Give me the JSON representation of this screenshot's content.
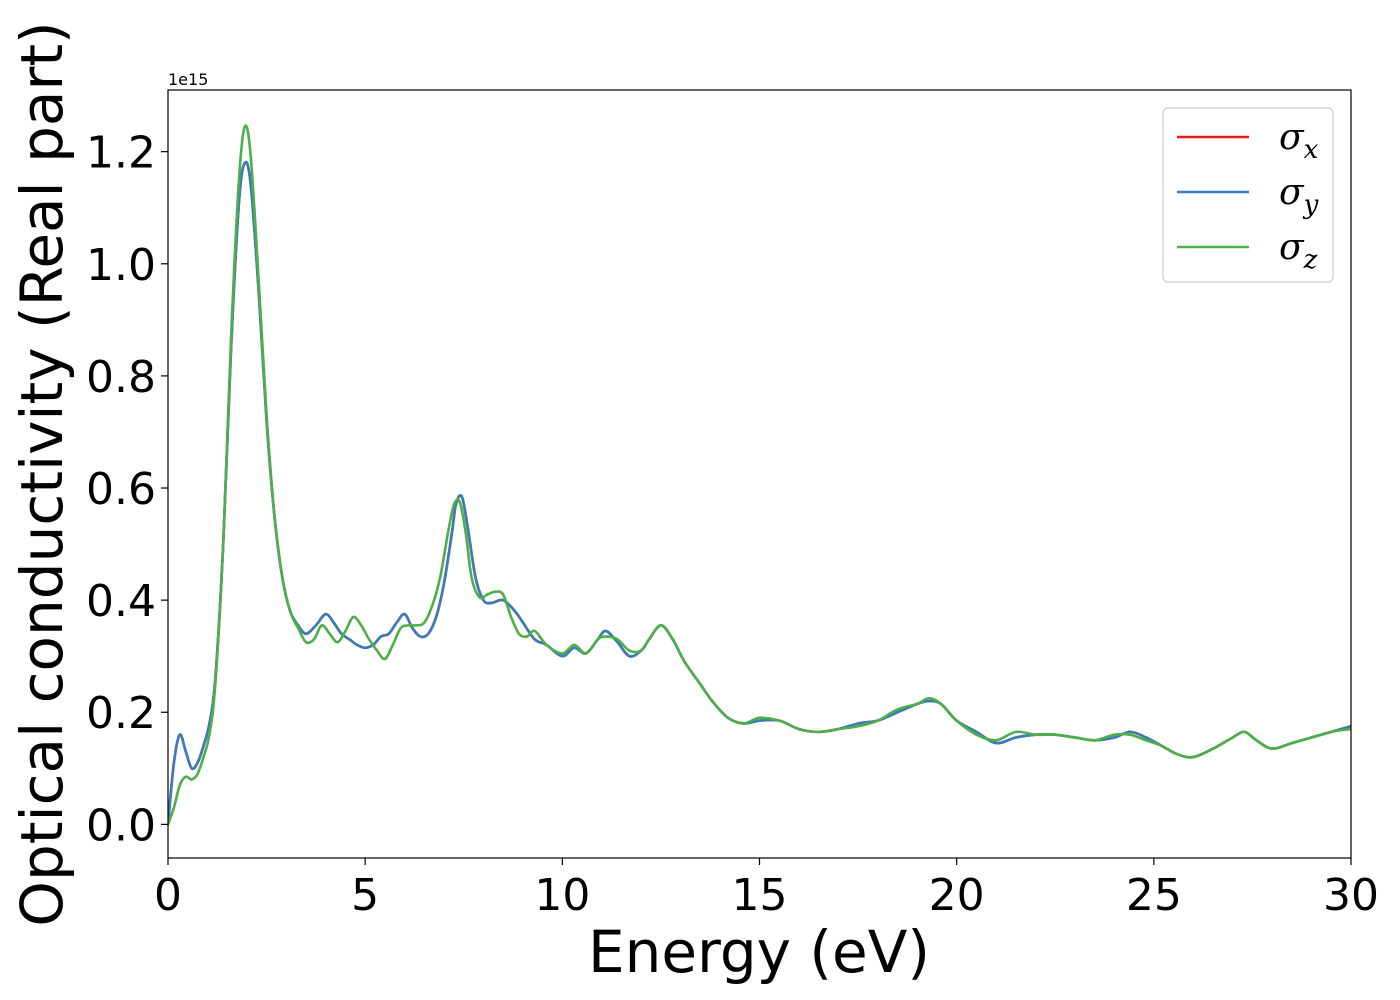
{
  "chart_data": {
    "type": "line",
    "title": "",
    "xlabel": "Energy (eV)",
    "ylabel": "Optical conductivity (Real part)",
    "y_offset_label": "1e15",
    "xlim": [
      0,
      30
    ],
    "ylim": [
      -0.06,
      1.31
    ],
    "x_ticks": [
      0,
      5,
      10,
      15,
      20,
      25,
      30
    ],
    "x_tick_labels": [
      "0",
      "5",
      "10",
      "15",
      "20",
      "25",
      "30"
    ],
    "y_ticks": [
      0.0,
      0.2,
      0.4,
      0.6,
      0.8,
      1.0,
      1.2
    ],
    "y_tick_labels": [
      "0.0",
      "0.2",
      "0.4",
      "0.6",
      "0.8",
      "1.0",
      "1.2"
    ],
    "grid": false,
    "legend_position": "top-right",
    "series": [
      {
        "name": "σx",
        "symbol": "σ",
        "subscript": "x",
        "color": "#e41a1c",
        "x": [
          0,
          0.15,
          0.3,
          0.45,
          0.6,
          0.75,
          0.9,
          1.05,
          1.2,
          1.4,
          1.6,
          1.8,
          1.95,
          2.1,
          2.3,
          2.5,
          2.7,
          2.9,
          3.1,
          3.3,
          3.5,
          3.75,
          4.0,
          4.2,
          4.4,
          4.6,
          4.8,
          5.0,
          5.2,
          5.4,
          5.6,
          5.8,
          6.0,
          6.2,
          6.4,
          6.6,
          6.8,
          7.0,
          7.2,
          7.3,
          7.45,
          7.6,
          7.8,
          8.0,
          8.2,
          8.5,
          8.8,
          9.0,
          9.3,
          9.6,
          10.0,
          10.3,
          10.6,
          10.9,
          11.1,
          11.4,
          11.7,
          12.0,
          12.2,
          12.5,
          12.8,
          13.1,
          13.5,
          13.8,
          14.2,
          14.6,
          15.0,
          15.5,
          16.0,
          16.5,
          17.0,
          17.5,
          18.0,
          18.5,
          19.0,
          19.3,
          19.6,
          20.0,
          20.5,
          21.0,
          21.5,
          22.0,
          22.5,
          23.0,
          23.5,
          24.0,
          24.4,
          24.8,
          25.2,
          25.6,
          26.0,
          26.5,
          27.0,
          27.3,
          27.6,
          28.0,
          28.5,
          29.0,
          29.5,
          30.0
        ],
        "values": [
          0.0,
          0.11,
          0.16,
          0.13,
          0.1,
          0.11,
          0.14,
          0.18,
          0.26,
          0.5,
          0.85,
          1.11,
          1.18,
          1.14,
          0.95,
          0.72,
          0.55,
          0.44,
          0.38,
          0.355,
          0.34,
          0.355,
          0.375,
          0.36,
          0.34,
          0.33,
          0.32,
          0.315,
          0.32,
          0.335,
          0.34,
          0.36,
          0.375,
          0.35,
          0.335,
          0.34,
          0.37,
          0.43,
          0.52,
          0.57,
          0.585,
          0.53,
          0.44,
          0.4,
          0.395,
          0.4,
          0.38,
          0.36,
          0.33,
          0.32,
          0.3,
          0.315,
          0.305,
          0.33,
          0.345,
          0.325,
          0.3,
          0.31,
          0.33,
          0.355,
          0.33,
          0.29,
          0.25,
          0.22,
          0.19,
          0.18,
          0.185,
          0.185,
          0.17,
          0.165,
          0.17,
          0.18,
          0.185,
          0.2,
          0.215,
          0.22,
          0.215,
          0.185,
          0.165,
          0.145,
          0.155,
          0.16,
          0.16,
          0.155,
          0.15,
          0.155,
          0.165,
          0.155,
          0.14,
          0.125,
          0.12,
          0.135,
          0.155,
          0.165,
          0.15,
          0.135,
          0.145,
          0.155,
          0.165,
          0.175
        ]
      },
      {
        "name": "σy",
        "symbol": "σ",
        "subscript": "y",
        "color": "#377eb8",
        "x": [
          0,
          0.15,
          0.3,
          0.45,
          0.6,
          0.75,
          0.9,
          1.05,
          1.2,
          1.4,
          1.6,
          1.8,
          1.95,
          2.1,
          2.3,
          2.5,
          2.7,
          2.9,
          3.1,
          3.3,
          3.5,
          3.75,
          4.0,
          4.2,
          4.4,
          4.6,
          4.8,
          5.0,
          5.2,
          5.4,
          5.6,
          5.8,
          6.0,
          6.2,
          6.4,
          6.6,
          6.8,
          7.0,
          7.2,
          7.3,
          7.45,
          7.6,
          7.8,
          8.0,
          8.2,
          8.5,
          8.8,
          9.0,
          9.3,
          9.6,
          10.0,
          10.3,
          10.6,
          10.9,
          11.1,
          11.4,
          11.7,
          12.0,
          12.2,
          12.5,
          12.8,
          13.1,
          13.5,
          13.8,
          14.2,
          14.6,
          15.0,
          15.5,
          16.0,
          16.5,
          17.0,
          17.5,
          18.0,
          18.5,
          19.0,
          19.3,
          19.6,
          20.0,
          20.5,
          21.0,
          21.5,
          22.0,
          22.5,
          23.0,
          23.5,
          24.0,
          24.4,
          24.8,
          25.2,
          25.6,
          26.0,
          26.5,
          27.0,
          27.3,
          27.6,
          28.0,
          28.5,
          29.0,
          29.5,
          30.0
        ],
        "values": [
          0.0,
          0.11,
          0.16,
          0.13,
          0.1,
          0.11,
          0.14,
          0.18,
          0.26,
          0.5,
          0.85,
          1.11,
          1.18,
          1.14,
          0.95,
          0.72,
          0.55,
          0.44,
          0.38,
          0.355,
          0.34,
          0.355,
          0.375,
          0.36,
          0.34,
          0.33,
          0.32,
          0.315,
          0.32,
          0.335,
          0.34,
          0.36,
          0.375,
          0.35,
          0.335,
          0.34,
          0.37,
          0.43,
          0.52,
          0.57,
          0.585,
          0.53,
          0.44,
          0.4,
          0.395,
          0.4,
          0.38,
          0.36,
          0.33,
          0.32,
          0.3,
          0.315,
          0.305,
          0.33,
          0.345,
          0.325,
          0.3,
          0.31,
          0.33,
          0.355,
          0.33,
          0.29,
          0.25,
          0.22,
          0.19,
          0.18,
          0.185,
          0.185,
          0.17,
          0.165,
          0.17,
          0.18,
          0.185,
          0.2,
          0.215,
          0.22,
          0.215,
          0.185,
          0.165,
          0.145,
          0.155,
          0.16,
          0.16,
          0.155,
          0.15,
          0.155,
          0.165,
          0.155,
          0.14,
          0.125,
          0.12,
          0.135,
          0.155,
          0.165,
          0.15,
          0.135,
          0.145,
          0.155,
          0.165,
          0.175
        ]
      },
      {
        "name": "σz",
        "symbol": "σ",
        "subscript": "z",
        "color": "#4daf4a",
        "x": [
          0,
          0.15,
          0.3,
          0.45,
          0.6,
          0.75,
          0.9,
          1.05,
          1.2,
          1.4,
          1.6,
          1.8,
          1.95,
          2.1,
          2.3,
          2.5,
          2.7,
          2.9,
          3.1,
          3.3,
          3.5,
          3.7,
          3.9,
          4.1,
          4.3,
          4.5,
          4.7,
          4.9,
          5.1,
          5.3,
          5.5,
          5.7,
          5.9,
          6.1,
          6.3,
          6.5,
          6.7,
          6.9,
          7.1,
          7.25,
          7.4,
          7.55,
          7.7,
          7.9,
          8.1,
          8.3,
          8.5,
          8.7,
          8.9,
          9.1,
          9.3,
          9.6,
          10.0,
          10.3,
          10.6,
          10.9,
          11.1,
          11.4,
          11.7,
          12.0,
          12.2,
          12.5,
          12.8,
          13.1,
          13.5,
          13.8,
          14.2,
          14.6,
          15.0,
          15.5,
          16.0,
          16.5,
          17.0,
          17.5,
          18.0,
          18.5,
          19.0,
          19.3,
          19.6,
          20.0,
          20.5,
          21.0,
          21.5,
          22.0,
          22.5,
          23.0,
          23.5,
          24.0,
          24.4,
          24.8,
          25.2,
          25.6,
          26.0,
          26.5,
          27.0,
          27.3,
          27.6,
          28.0,
          28.5,
          29.0,
          29.5,
          30.0
        ],
        "values": [
          0.0,
          0.03,
          0.07,
          0.085,
          0.08,
          0.09,
          0.12,
          0.16,
          0.25,
          0.5,
          0.87,
          1.15,
          1.245,
          1.19,
          0.97,
          0.73,
          0.55,
          0.44,
          0.38,
          0.35,
          0.325,
          0.33,
          0.355,
          0.34,
          0.325,
          0.345,
          0.37,
          0.355,
          0.33,
          0.31,
          0.295,
          0.32,
          0.35,
          0.355,
          0.355,
          0.36,
          0.39,
          0.44,
          0.52,
          0.57,
          0.575,
          0.52,
          0.44,
          0.405,
          0.41,
          0.415,
          0.41,
          0.37,
          0.34,
          0.335,
          0.345,
          0.32,
          0.305,
          0.32,
          0.305,
          0.33,
          0.335,
          0.33,
          0.31,
          0.31,
          0.33,
          0.355,
          0.33,
          0.29,
          0.25,
          0.22,
          0.19,
          0.18,
          0.19,
          0.185,
          0.17,
          0.165,
          0.17,
          0.175,
          0.185,
          0.205,
          0.215,
          0.225,
          0.215,
          0.185,
          0.16,
          0.15,
          0.165,
          0.16,
          0.16,
          0.155,
          0.15,
          0.16,
          0.16,
          0.15,
          0.14,
          0.125,
          0.12,
          0.135,
          0.155,
          0.165,
          0.15,
          0.135,
          0.145,
          0.155,
          0.165,
          0.17
        ]
      }
    ]
  }
}
